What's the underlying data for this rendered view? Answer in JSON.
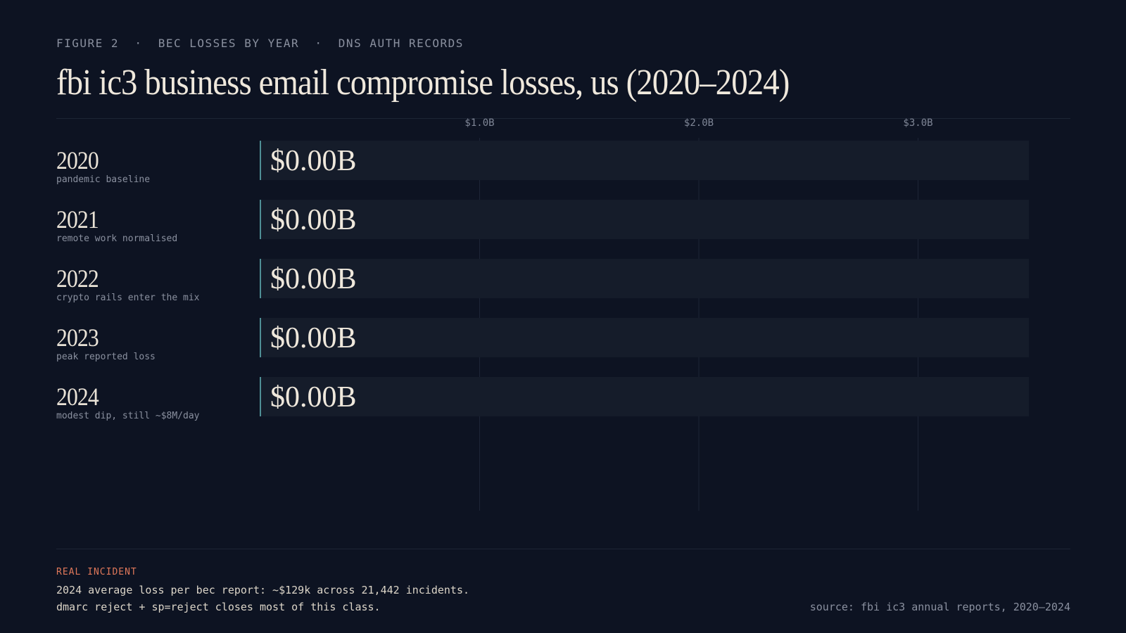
{
  "header": {
    "figure": "FIGURE 2",
    "topic": "BEC LOSSES BY YEAR",
    "section": "DNS AUTH RECORDS",
    "separator": "·"
  },
  "chart_data": {
    "type": "bar",
    "orientation": "horizontal",
    "title": "fbi ic3 business email compromise losses, us (2020–2024)",
    "categories": [
      "2020",
      "2021",
      "2022",
      "2023",
      "2024"
    ],
    "notes": [
      "pandemic baseline",
      "remote work normalised",
      "crypto rails enter the mix",
      "peak reported loss",
      "modest dip, still ~$8M/day"
    ],
    "values": [
      0,
      0,
      0,
      0,
      0
    ],
    "value_labels": [
      "$0.00B",
      "$0.00B",
      "$0.00B",
      "$0.00B",
      "$0.00B"
    ],
    "xlim": [
      0,
      3.5
    ],
    "xticks": [
      1,
      2,
      3
    ],
    "xtick_labels": [
      "$1.0B",
      "$2.0B",
      "$3.0B"
    ],
    "unit": "USD billions",
    "grid": true,
    "legend": "none",
    "colors": {
      "track": "#151c2a",
      "bar": "#3a6e78",
      "start_line": "#4f8f95"
    }
  },
  "footer": {
    "kicker": "REAL INCIDENT",
    "line1": "2024 average loss per bec report: ~$129k across 21,442 incidents.",
    "line2": "dmarc reject + sp=reject closes most of this class.",
    "source": "source: fbi ic3 annual reports, 2020–2024"
  }
}
